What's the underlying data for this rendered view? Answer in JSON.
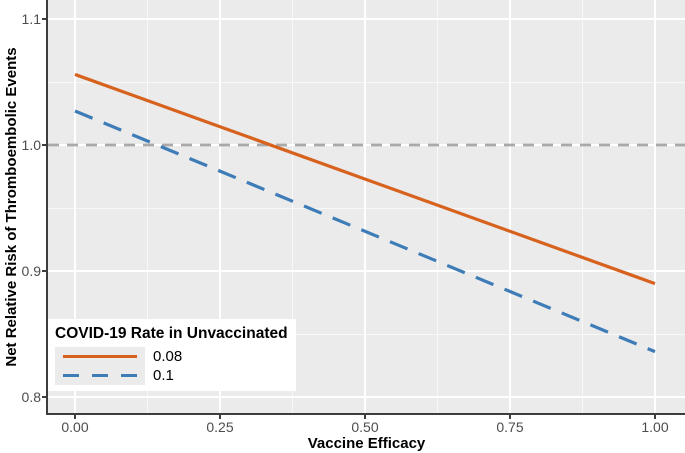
{
  "figure": {
    "background": "#FFFFFF",
    "panel_background": "#EBEBEB",
    "gridline_color": "#FFFFFF",
    "axis_line_color": "#3D3D3D",
    "tick_label_color": "#4D4D4D"
  },
  "chart_data": {
    "type": "line",
    "title": "",
    "xlabel": "Vaccine Efficacy",
    "ylabel": "Net Relative Risk of Thromboembolic Events",
    "xlim": [
      0,
      1
    ],
    "ylim": [
      0.8,
      1.1
    ],
    "x_ticks": {
      "values": [
        0,
        0.25,
        0.5,
        0.75,
        1
      ],
      "labels": [
        "0.00",
        "0.25",
        "0.50",
        "0.75",
        "1.00"
      ]
    },
    "y_ticks": {
      "values": [
        0.8,
        0.9,
        1.0,
        1.1
      ],
      "labels": [
        "0.8",
        "0.9",
        "1.0",
        "1.1"
      ]
    },
    "grid": {
      "major": true,
      "minor": true
    },
    "legend": {
      "title": "COVID-19 Rate in Unvaccinated",
      "position": "inside-bottom-left"
    },
    "series": [
      {
        "name": "0.08",
        "color": "#D7621E",
        "line_style": "solid",
        "x": [
          0,
          1
        ],
        "y": [
          1.056,
          0.89
        ]
      },
      {
        "name": "0.1",
        "color": "#3E7CB8",
        "line_style": "dashed",
        "x": [
          0,
          1
        ],
        "y": [
          1.027,
          0.836
        ]
      }
    ],
    "reference_line": {
      "y": 1.0,
      "color": "#A9A9A9",
      "line_style": "dashed"
    }
  }
}
